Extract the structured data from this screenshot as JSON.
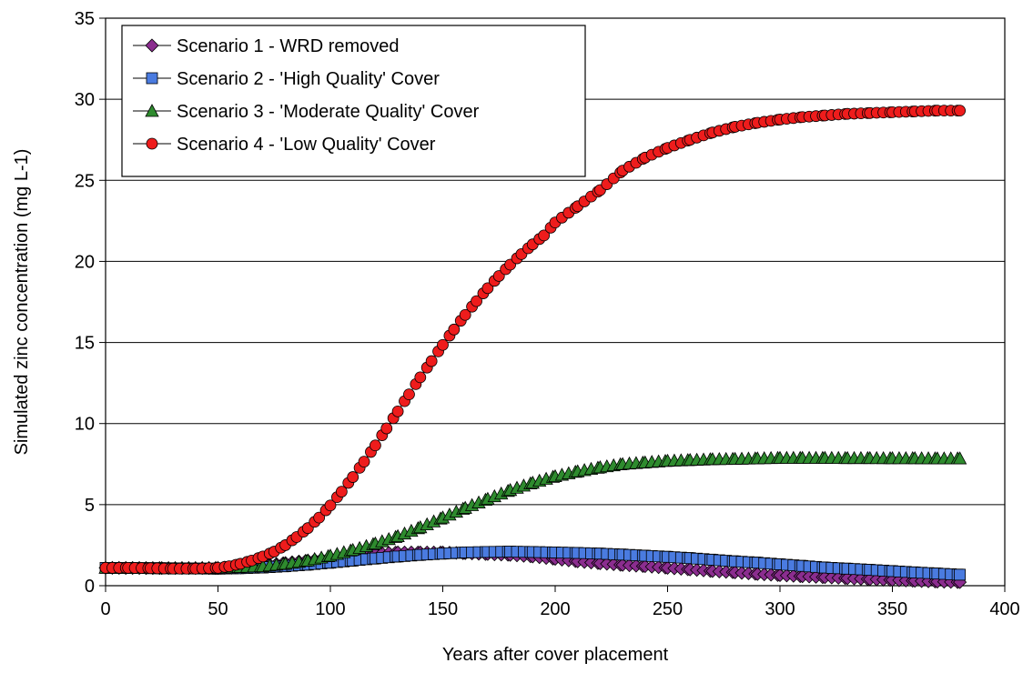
{
  "chart_data": {
    "type": "line",
    "title": "",
    "xlabel": "Years after cover placement",
    "ylabel": "Simulated zinc concentration (mg L-1)",
    "xlim": [
      0,
      400
    ],
    "ylim": [
      0,
      35
    ],
    "x_ticks": [
      0,
      50,
      100,
      150,
      200,
      250,
      300,
      350,
      400
    ],
    "y_ticks": [
      0,
      5,
      10,
      15,
      20,
      25,
      30,
      35
    ],
    "grid": "horizontal",
    "legend_position": "top-left",
    "series": [
      {
        "name": "Scenario 1 - WRD removed",
        "marker": "diamond",
        "color": "#8B2D8F",
        "points": [
          [
            0,
            1.1
          ],
          [
            25,
            1.08
          ],
          [
            50,
            1.08
          ],
          [
            60,
            1.12
          ],
          [
            70,
            1.25
          ],
          [
            80,
            1.4
          ],
          [
            90,
            1.55
          ],
          [
            100,
            1.7
          ],
          [
            110,
            1.85
          ],
          [
            120,
            1.98
          ],
          [
            130,
            2.05
          ],
          [
            140,
            2.05
          ],
          [
            150,
            2.05
          ],
          [
            160,
            2.0
          ],
          [
            170,
            1.95
          ],
          [
            180,
            1.9
          ],
          [
            190,
            1.8
          ],
          [
            200,
            1.65
          ],
          [
            210,
            1.5
          ],
          [
            220,
            1.38
          ],
          [
            230,
            1.28
          ],
          [
            240,
            1.2
          ],
          [
            250,
            1.1
          ],
          [
            260,
            1.0
          ],
          [
            270,
            0.9
          ],
          [
            280,
            0.82
          ],
          [
            290,
            0.72
          ],
          [
            300,
            0.65
          ],
          [
            310,
            0.58
          ],
          [
            320,
            0.52
          ],
          [
            330,
            0.46
          ],
          [
            340,
            0.4
          ],
          [
            350,
            0.35
          ],
          [
            360,
            0.3
          ],
          [
            370,
            0.25
          ],
          [
            380,
            0.22
          ]
        ]
      },
      {
        "name": "Scenario 2 - 'High Quality' Cover",
        "marker": "square",
        "color": "#4A7BE0",
        "points": [
          [
            0,
            1.1
          ],
          [
            25,
            1.08
          ],
          [
            50,
            1.05
          ],
          [
            60,
            1.08
          ],
          [
            70,
            1.12
          ],
          [
            80,
            1.2
          ],
          [
            90,
            1.3
          ],
          [
            100,
            1.42
          ],
          [
            110,
            1.55
          ],
          [
            120,
            1.68
          ],
          [
            130,
            1.8
          ],
          [
            140,
            1.9
          ],
          [
            150,
            1.98
          ],
          [
            160,
            2.05
          ],
          [
            170,
            2.08
          ],
          [
            180,
            2.1
          ],
          [
            190,
            2.08
          ],
          [
            200,
            2.05
          ],
          [
            210,
            2.02
          ],
          [
            220,
            1.98
          ],
          [
            230,
            1.92
          ],
          [
            240,
            1.85
          ],
          [
            250,
            1.78
          ],
          [
            260,
            1.7
          ],
          [
            270,
            1.6
          ],
          [
            280,
            1.5
          ],
          [
            290,
            1.42
          ],
          [
            300,
            1.32
          ],
          [
            310,
            1.22
          ],
          [
            320,
            1.12
          ],
          [
            330,
            1.05
          ],
          [
            340,
            0.98
          ],
          [
            350,
            0.9
          ],
          [
            360,
            0.82
          ],
          [
            370,
            0.75
          ],
          [
            380,
            0.68
          ]
        ]
      },
      {
        "name": "Scenario 3 - 'Moderate Quality' Cover",
        "marker": "triangle",
        "color": "#2E8B2E",
        "points": [
          [
            0,
            1.1
          ],
          [
            25,
            1.08
          ],
          [
            50,
            1.1
          ],
          [
            60,
            1.15
          ],
          [
            70,
            1.2
          ],
          [
            80,
            1.35
          ],
          [
            90,
            1.55
          ],
          [
            100,
            1.85
          ],
          [
            110,
            2.2
          ],
          [
            120,
            2.6
          ],
          [
            130,
            3.05
          ],
          [
            140,
            3.6
          ],
          [
            150,
            4.2
          ],
          [
            160,
            4.8
          ],
          [
            170,
            5.35
          ],
          [
            180,
            5.9
          ],
          [
            190,
            6.35
          ],
          [
            200,
            6.75
          ],
          [
            210,
            7.05
          ],
          [
            220,
            7.3
          ],
          [
            230,
            7.5
          ],
          [
            240,
            7.6
          ],
          [
            250,
            7.7
          ],
          [
            260,
            7.75
          ],
          [
            270,
            7.8
          ],
          [
            280,
            7.82
          ],
          [
            290,
            7.85
          ],
          [
            300,
            7.88
          ],
          [
            310,
            7.88
          ],
          [
            320,
            7.88
          ],
          [
            330,
            7.87
          ],
          [
            340,
            7.87
          ],
          [
            350,
            7.86
          ],
          [
            360,
            7.86
          ],
          [
            370,
            7.85
          ],
          [
            380,
            7.85
          ]
        ]
      },
      {
        "name": "Scenario 4 - 'Low Quality' Cover",
        "marker": "circle",
        "color": "#EE1C1C",
        "points": [
          [
            0,
            1.1
          ],
          [
            10,
            1.1
          ],
          [
            20,
            1.08
          ],
          [
            30,
            1.05
          ],
          [
            40,
            1.05
          ],
          [
            50,
            1.1
          ],
          [
            55,
            1.2
          ],
          [
            60,
            1.35
          ],
          [
            65,
            1.55
          ],
          [
            70,
            1.8
          ],
          [
            75,
            2.1
          ],
          [
            80,
            2.5
          ],
          [
            85,
            3.0
          ],
          [
            90,
            3.55
          ],
          [
            95,
            4.2
          ],
          [
            100,
            4.95
          ],
          [
            105,
            5.8
          ],
          [
            110,
            6.7
          ],
          [
            115,
            7.65
          ],
          [
            120,
            8.65
          ],
          [
            125,
            9.7
          ],
          [
            130,
            10.75
          ],
          [
            135,
            11.8
          ],
          [
            140,
            12.85
          ],
          [
            145,
            13.85
          ],
          [
            150,
            14.85
          ],
          [
            155,
            15.8
          ],
          [
            160,
            16.7
          ],
          [
            165,
            17.55
          ],
          [
            170,
            18.35
          ],
          [
            175,
            19.1
          ],
          [
            180,
            19.8
          ],
          [
            185,
            20.45
          ],
          [
            190,
            21.05
          ],
          [
            195,
            21.6
          ],
          [
            200,
            22.4
          ],
          [
            210,
            23.4
          ],
          [
            220,
            24.4
          ],
          [
            230,
            25.6
          ],
          [
            240,
            26.4
          ],
          [
            250,
            27.0
          ],
          [
            260,
            27.5
          ],
          [
            270,
            27.95
          ],
          [
            280,
            28.3
          ],
          [
            290,
            28.55
          ],
          [
            300,
            28.75
          ],
          [
            310,
            28.9
          ],
          [
            320,
            29.0
          ],
          [
            330,
            29.1
          ],
          [
            340,
            29.15
          ],
          [
            350,
            29.2
          ],
          [
            360,
            29.25
          ],
          [
            370,
            29.3
          ],
          [
            380,
            29.3
          ]
        ]
      }
    ]
  }
}
